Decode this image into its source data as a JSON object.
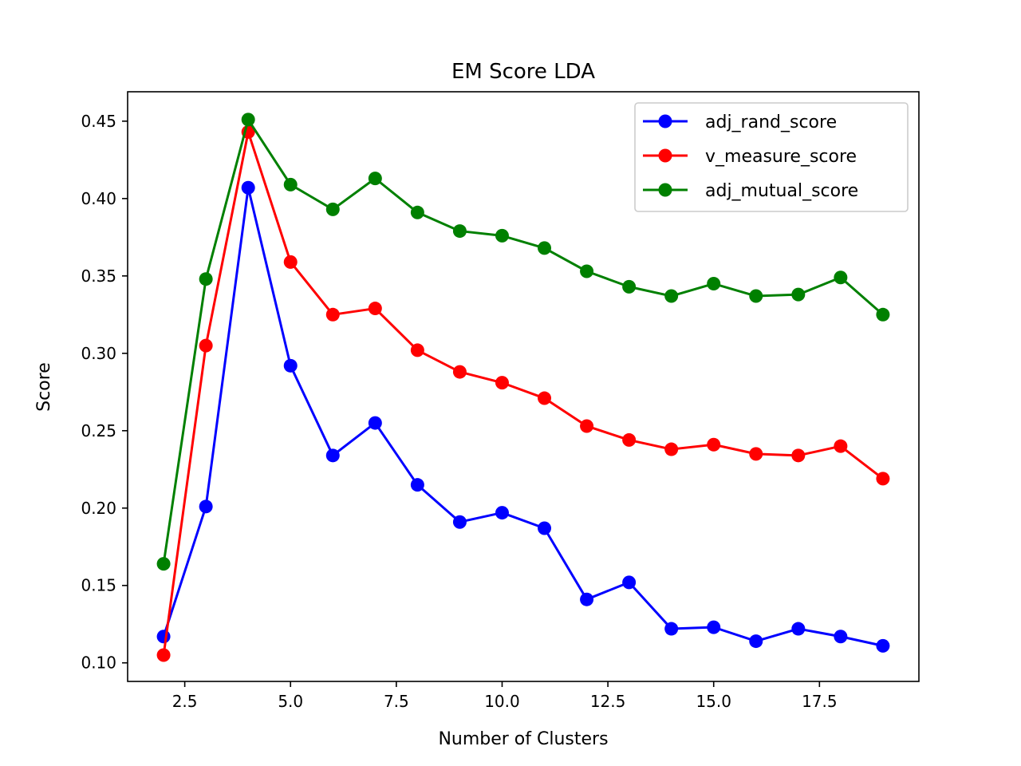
{
  "chart_data": {
    "type": "line",
    "title": "EM Score LDA",
    "xlabel": "Number of Clusters",
    "ylabel": "Score",
    "xlim": [
      1.15,
      19.85
    ],
    "ylim": [
      0.088,
      0.469
    ],
    "xticks": [
      2.5,
      5.0,
      7.5,
      10.0,
      12.5,
      15.0,
      17.5
    ],
    "xtick_labels": [
      "2.5",
      "5.0",
      "7.5",
      "10.0",
      "12.5",
      "15.0",
      "17.5"
    ],
    "yticks": [
      0.1,
      0.15,
      0.2,
      0.25,
      0.3,
      0.35,
      0.4,
      0.45
    ],
    "ytick_labels": [
      "0.10",
      "0.15",
      "0.20",
      "0.25",
      "0.30",
      "0.35",
      "0.40",
      "0.45"
    ],
    "grid": false,
    "legend_position": "top-right",
    "x": [
      2,
      3,
      4,
      5,
      6,
      7,
      8,
      9,
      10,
      11,
      12,
      13,
      14,
      15,
      16,
      17,
      18,
      19
    ],
    "series": [
      {
        "name": "adj_rand_score",
        "color": "#0000ff",
        "values": [
          0.117,
          0.201,
          0.407,
          0.292,
          0.234,
          0.255,
          0.215,
          0.191,
          0.197,
          0.187,
          0.141,
          0.152,
          0.122,
          0.123,
          0.114,
          0.122,
          0.117,
          0.111
        ]
      },
      {
        "name": "v_measure_score",
        "color": "#ff0000",
        "values": [
          0.105,
          0.305,
          0.443,
          0.359,
          0.325,
          0.329,
          0.302,
          0.288,
          0.281,
          0.271,
          0.253,
          0.244,
          0.238,
          0.241,
          0.235,
          0.234,
          0.24,
          0.219
        ]
      },
      {
        "name": "adj_mutual_score",
        "color": "#008000",
        "values": [
          0.164,
          0.348,
          0.451,
          0.409,
          0.393,
          0.413,
          0.391,
          0.379,
          0.376,
          0.368,
          0.353,
          0.343,
          0.337,
          0.345,
          0.337,
          0.338,
          0.349,
          0.325
        ]
      }
    ]
  }
}
